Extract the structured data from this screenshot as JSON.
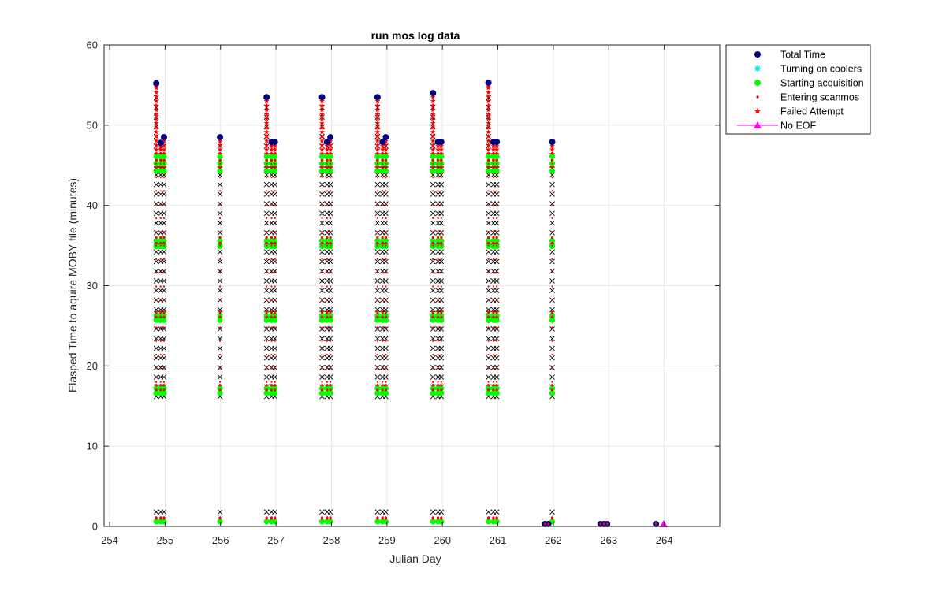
{
  "chart_data": {
    "type": "scatter",
    "title": "run mos log data",
    "xlabel": "Julian Day",
    "ylabel": "Elasped Time to aquire MOBY file (minutes)",
    "xlim": [
      253.9,
      265.0
    ],
    "ylim": [
      0,
      60
    ],
    "xticks": [
      "254",
      "255",
      "256",
      "257",
      "258",
      "259",
      "260",
      "261",
      "262",
      "263",
      "264"
    ],
    "yticks": [
      "0",
      "10",
      "20",
      "30",
      "40",
      "50",
      "60"
    ],
    "grid": true,
    "legend_position": "outside-top-right",
    "colors": {
      "total_time": "#000080",
      "turning_on_coolers": "#00e5ee",
      "starting_acquisition": "#00ff00",
      "entering_scanmos": "#ff0000",
      "failed_attempt": "#ff0000",
      "no_eof": "#ff00ff",
      "unlabeled_x": "#000000"
    },
    "legend": [
      {
        "key": "total_time",
        "label": "Total Time",
        "marker": "circle"
      },
      {
        "key": "turning_on_coolers",
        "label": "Turning on coolers",
        "marker": "asterisk"
      },
      {
        "key": "starting_acquisition",
        "label": "Starting acquisition",
        "marker": "circle"
      },
      {
        "key": "entering_scanmos",
        "label": "Entering scanmos",
        "marker": "dot"
      },
      {
        "key": "failed_attempt",
        "label": "Failed Attempt",
        "marker": "star"
      },
      {
        "key": "no_eof",
        "label": "No EOF",
        "marker": "triangle-line"
      }
    ],
    "series": [
      {
        "name": "Total Time",
        "points": [
          [
            254.84,
            55.2
          ],
          [
            254.92,
            47.8
          ],
          [
            254.98,
            48.5
          ],
          [
            255.99,
            48.5
          ],
          [
            256.83,
            53.5
          ],
          [
            256.92,
            47.9
          ],
          [
            256.98,
            47.9
          ],
          [
            257.83,
            53.5
          ],
          [
            257.92,
            47.9
          ],
          [
            257.98,
            48.5
          ],
          [
            258.83,
            53.5
          ],
          [
            258.92,
            47.9
          ],
          [
            258.98,
            48.5
          ],
          [
            259.83,
            54.0
          ],
          [
            259.92,
            47.9
          ],
          [
            259.98,
            47.9
          ],
          [
            260.83,
            55.3
          ],
          [
            260.92,
            47.9
          ],
          [
            260.98,
            47.9
          ],
          [
            261.85,
            0.3
          ],
          [
            261.91,
            0.3
          ],
          [
            261.98,
            47.9
          ],
          [
            262.85,
            0.3
          ],
          [
            262.91,
            0.3
          ],
          [
            262.97,
            0.3
          ],
          [
            263.85,
            0.3
          ]
        ]
      },
      {
        "name": "No EOF",
        "points": [
          [
            263.99,
            0.3
          ]
        ]
      }
    ],
    "runs": [
      {
        "day": 254.84,
        "total": 55.2,
        "fill_x": true
      },
      {
        "day": 254.92,
        "total": 47.8,
        "fill_x": true
      },
      {
        "day": 254.98,
        "total": 48.5,
        "fill_x": true
      },
      {
        "day": 255.99,
        "total": 48.5,
        "fill_x": true
      },
      {
        "day": 256.83,
        "total": 53.5,
        "fill_x": true
      },
      {
        "day": 256.92,
        "total": 47.9,
        "fill_x": true
      },
      {
        "day": 256.98,
        "total": 47.9,
        "fill_x": true
      },
      {
        "day": 257.83,
        "total": 53.5,
        "fill_x": true
      },
      {
        "day": 257.92,
        "total": 47.9,
        "fill_x": true
      },
      {
        "day": 257.98,
        "total": 48.5,
        "fill_x": true
      },
      {
        "day": 258.83,
        "total": 53.5,
        "fill_x": true
      },
      {
        "day": 258.92,
        "total": 47.9,
        "fill_x": true
      },
      {
        "day": 258.98,
        "total": 48.5,
        "fill_x": true
      },
      {
        "day": 259.83,
        "total": 54.0,
        "fill_x": true
      },
      {
        "day": 259.92,
        "total": 47.9,
        "fill_x": true
      },
      {
        "day": 259.98,
        "total": 47.9,
        "fill_x": true
      },
      {
        "day": 260.83,
        "total": 55.3,
        "fill_x": true
      },
      {
        "day": 260.92,
        "total": 47.9,
        "fill_x": true
      },
      {
        "day": 260.98,
        "total": 47.9,
        "fill_x": true
      },
      {
        "day": 261.98,
        "total": 47.9,
        "fill_x": true
      }
    ],
    "acquisition_levels": [
      0.6,
      16.6,
      17.2,
      25.7,
      26.3,
      34.9,
      35.6,
      44.3,
      45.2,
      46.1
    ],
    "x_marker_spacing": 1.2
  }
}
